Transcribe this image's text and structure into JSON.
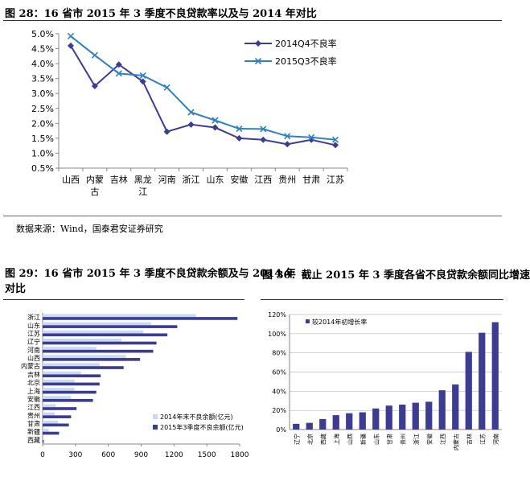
{
  "fig28": {
    "title": "图 28：16 省市 2015 年 3 季度不良贷款率以及与 2014 年对比",
    "source": "数据来源：Wind，国泰君安证券研究"
  },
  "fig29": {
    "title_line1": "图 29：16 省市 2015 年 3 季度不良贷款余额及与 2014 年",
    "title_line2": "对比"
  },
  "fig30": {
    "title": "图 30：截止 2015 年 3 季度各省不良贷款余额同比增速"
  },
  "colors": {
    "dark": "#3c3c96",
    "light": "#2a82c8",
    "lightbar": "#c6dbef",
    "axis": "#888888"
  },
  "chart_data": [
    {
      "type": "line",
      "categories": [
        "山西",
        "内蒙古",
        "吉林",
        "黑龙江",
        "河南",
        "浙江",
        "山东",
        "安徽",
        "江西",
        "贵州",
        "甘肃",
        "江苏"
      ],
      "series": [
        {
          "name": "2014Q4不良率",
          "values": [
            4.6,
            3.25,
            3.97,
            3.4,
            1.72,
            1.96,
            1.86,
            1.5,
            1.45,
            1.3,
            1.45,
            1.27
          ]
        },
        {
          "name": "2015Q3不良率",
          "values": [
            4.92,
            4.28,
            3.67,
            3.6,
            3.2,
            2.37,
            2.1,
            1.82,
            1.81,
            1.57,
            1.53,
            1.45
          ]
        }
      ],
      "yticks": [
        "5.0%",
        "4.5%",
        "4.0%",
        "3.5%",
        "3.0%",
        "2.5%",
        "2.0%",
        "1.5%",
        "1.0%",
        "0.5%"
      ],
      "ylim": [
        0.5,
        5.0
      ],
      "legend": "top-right"
    },
    {
      "type": "bar",
      "orientation": "horizontal",
      "categories": [
        "浙江",
        "山东",
        "江苏",
        "辽宁",
        "河南",
        "山西",
        "内蒙古",
        "吉林",
        "北京",
        "上海",
        "安徽",
        "江西",
        "贵州",
        "甘肃",
        "新疆",
        "西藏"
      ],
      "series": [
        {
          "name": "2014年末不良余额(亿元)",
          "values": [
            1400,
            990,
            920,
            720,
            490,
            760,
            520,
            350,
            290,
            290,
            260,
            120,
            110,
            140,
            55,
            10
          ]
        },
        {
          "name": "2015年3季度不良余额(亿元)",
          "values": [
            1780,
            1230,
            1140,
            1040,
            1010,
            890,
            740,
            530,
            520,
            490,
            460,
            310,
            260,
            240,
            150,
            10
          ]
        }
      ],
      "xticks": [
        "0",
        "300",
        "600",
        "900",
        "1200",
        "1500",
        "1800"
      ],
      "xlim": [
        0,
        1800
      ],
      "legend": "bottom-left"
    },
    {
      "type": "bar",
      "categories": [
        "辽宁",
        "北京",
        "西藏",
        "上海",
        "山西",
        "新疆",
        "山东",
        "甘肃",
        "贵州",
        "浙江",
        "安徽",
        "江西",
        "内蒙古",
        "吉林",
        "江苏",
        "河南"
      ],
      "series": [
        {
          "name": "较2014年初增长率",
          "values": [
            6,
            7,
            11,
            15,
            17,
            18,
            22,
            25,
            26,
            28,
            29,
            41,
            47,
            81,
            101,
            112
          ]
        }
      ],
      "yticks": [
        "120%",
        "100%",
        "80%",
        "60%",
        "40%",
        "20%",
        "0%"
      ],
      "ylim": [
        0,
        120
      ],
      "legend": "top-left"
    }
  ]
}
